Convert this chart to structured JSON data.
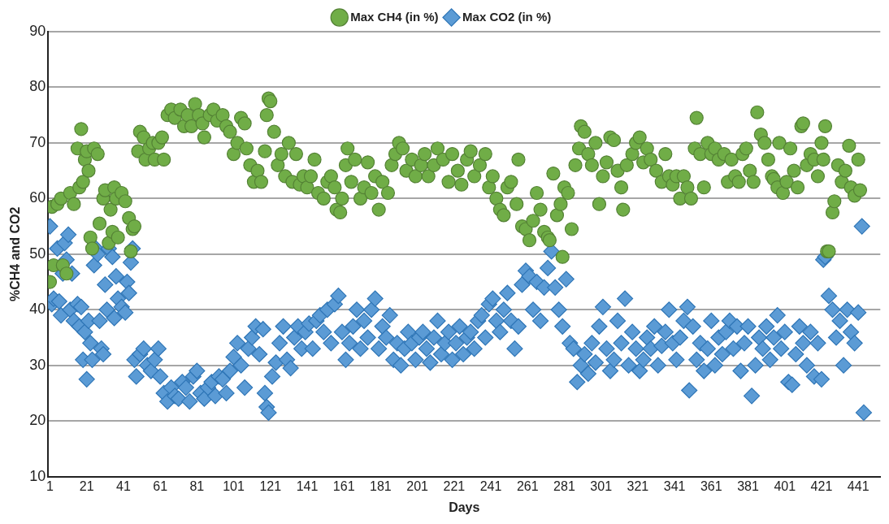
{
  "chart_data": {
    "type": "scatter",
    "xlabel": "Days",
    "ylabel": "%CH4 and CO2",
    "xlim": [
      0,
      453
    ],
    "xticks": [
      1,
      21,
      41,
      61,
      81,
      101,
      121,
      141,
      161,
      181,
      201,
      221,
      241,
      261,
      281,
      301,
      321,
      341,
      361,
      381,
      401,
      421,
      441
    ],
    "ylim": [
      10,
      90
    ],
    "yticks": [
      10,
      20,
      30,
      40,
      50,
      60,
      70,
      80,
      90
    ],
    "grid": "y",
    "legend": "top",
    "series": [
      {
        "name": "Max CH4 (in %)",
        "color": "#70ad47",
        "marker": "circle",
        "x": [
          1,
          2,
          3,
          5,
          7,
          8,
          10,
          12,
          14,
          16,
          17,
          18,
          19,
          20,
          21,
          22,
          23,
          24,
          25,
          27,
          28,
          30,
          31,
          33,
          34,
          35,
          36,
          37,
          38,
          40,
          42,
          44,
          45,
          46,
          47,
          49,
          50,
          52,
          53,
          55,
          57,
          58,
          60,
          62,
          63,
          65,
          67,
          69,
          72,
          74,
          76,
          78,
          80,
          82,
          84,
          85,
          88,
          90,
          92,
          95,
          97,
          99,
          101,
          103,
          105,
          107,
          108,
          110,
          112,
          114,
          116,
          118,
          119,
          120,
          121,
          123,
          125,
          127,
          129,
          131,
          133,
          135,
          137,
          139,
          141,
          143,
          145,
          147,
          150,
          152,
          154,
          156,
          157,
          159,
          160,
          162,
          163,
          165,
          167,
          170,
          172,
          174,
          176,
          178,
          180,
          182,
          185,
          187,
          189,
          191,
          193,
          195,
          198,
          200,
          203,
          205,
          207,
          210,
          212,
          215,
          218,
          220,
          223,
          225,
          228,
          230,
          232,
          235,
          238,
          240,
          242,
          244,
          246,
          248,
          250,
          252,
          255,
          256,
          258,
          260,
          262,
          264,
          266,
          268,
          270,
          272,
          273,
          275,
          277,
          279,
          280,
          281,
          283,
          285,
          287,
          289,
          290,
          292,
          294,
          296,
          298,
          300,
          302,
          304,
          306,
          308,
          310,
          312,
          313,
          315,
          318,
          320,
          322,
          324,
          326,
          328,
          331,
          334,
          336,
          338,
          340,
          342,
          344,
          346,
          348,
          350,
          352,
          353,
          355,
          357,
          359,
          361,
          363,
          365,
          368,
          370,
          372,
          374,
          376,
          378,
          380,
          382,
          384,
          386,
          388,
          390,
          392,
          394,
          395,
          397,
          398,
          400,
          402,
          404,
          406,
          408,
          410,
          411,
          413,
          415,
          417,
          419,
          421,
          422,
          423,
          424,
          425,
          427,
          428,
          430,
          432,
          434,
          436,
          437,
          439,
          441,
          442
        ],
        "values": [
          45,
          58.5,
          48,
          59,
          60,
          48,
          46.5,
          61,
          59,
          69,
          62,
          72.5,
          63,
          67,
          68.5,
          65,
          53,
          51,
          69,
          68,
          55.5,
          60,
          61.5,
          52,
          58,
          54,
          62,
          60,
          53,
          61,
          59.5,
          56.5,
          50.5,
          54.5,
          55,
          68.5,
          72,
          71,
          67,
          69,
          70,
          67,
          70,
          71,
          67,
          75,
          76,
          74.5,
          76,
          73,
          75,
          73,
          77,
          75,
          73.5,
          71,
          75,
          76,
          74,
          75,
          73,
          72,
          68,
          70,
          74.5,
          73.5,
          69,
          66,
          63,
          65,
          63,
          68.5,
          75,
          78,
          77.5,
          72,
          66,
          68,
          64,
          70,
          63,
          68,
          62.5,
          64,
          62,
          64,
          67,
          61,
          60,
          63,
          64,
          62,
          58,
          57.5,
          60,
          66,
          69,
          63,
          67,
          60,
          62,
          66.5,
          61,
          64,
          58,
          63,
          61,
          66,
          68,
          70,
          69,
          65,
          67,
          64,
          66,
          68,
          64,
          66,
          69,
          67,
          63,
          68,
          65,
          62.5,
          67,
          68.5,
          64,
          66,
          68,
          62,
          64,
          60,
          58,
          57,
          62,
          63,
          59,
          67,
          55,
          54.5,
          52.5,
          56,
          61,
          58,
          54,
          53,
          52.5,
          64.5,
          57,
          59,
          49.5,
          62,
          61,
          54.5,
          66,
          69,
          73,
          72,
          68,
          66,
          70,
          59,
          64,
          66.5,
          71,
          70.5,
          65,
          62,
          58,
          66,
          68,
          70,
          71,
          66.5,
          69,
          67,
          65,
          63,
          68,
          64,
          62.5,
          64,
          60,
          64,
          62,
          60,
          69,
          74.5,
          68,
          62,
          70,
          68,
          69,
          67,
          68,
          63,
          67,
          64,
          63,
          68,
          69,
          65,
          63,
          75.5,
          71.5,
          70,
          67,
          64,
          63.5,
          62,
          70,
          61,
          63,
          69,
          65,
          62,
          73,
          73.5,
          66,
          68,
          67,
          64,
          70,
          67,
          73,
          50.5,
          50.5,
          57.5,
          59.5,
          66,
          63,
          65,
          69.5,
          62,
          60.5,
          67,
          61.5
        ]
      },
      {
        "name": "Max CO2 (in %)",
        "color": "#5b9bd5",
        "marker": "diamond",
        "x": [
          1,
          2,
          3,
          5,
          6,
          7,
          8,
          9,
          10,
          11,
          12,
          13,
          14,
          16,
          17,
          18,
          19,
          20,
          21,
          22,
          23,
          24,
          25,
          26,
          27,
          28,
          29,
          30,
          31,
          32,
          33,
          35,
          36,
          37,
          38,
          40,
          42,
          43,
          44,
          45,
          46,
          47,
          48,
          50,
          52,
          54,
          56,
          58,
          60,
          61,
          63,
          65,
          67,
          69,
          71,
          73,
          75,
          77,
          79,
          81,
          83,
          85,
          87,
          89,
          91,
          93,
          95,
          97,
          99,
          101,
          103,
          105,
          107,
          109,
          111,
          113,
          115,
          117,
          118,
          119,
          120,
          122,
          124,
          126,
          128,
          130,
          132,
          134,
          136,
          138,
          140,
          142,
          144,
          146,
          148,
          150,
          152,
          154,
          156,
          158,
          160,
          162,
          164,
          166,
          168,
          170,
          172,
          174,
          176,
          178,
          180,
          182,
          184,
          186,
          188,
          190,
          192,
          194,
          196,
          198,
          200,
          202,
          204,
          206,
          208,
          210,
          212,
          214,
          216,
          218,
          220,
          222,
          224,
          226,
          228,
          230,
          232,
          234,
          236,
          238,
          240,
          242,
          244,
          246,
          248,
          250,
          252,
          254,
          256,
          258,
          260,
          262,
          264,
          266,
          268,
          270,
          272,
          274,
          276,
          278,
          280,
          282,
          284,
          286,
          288,
          290,
          292,
          294,
          296,
          298,
          300,
          302,
          304,
          306,
          308,
          310,
          312,
          314,
          316,
          318,
          320,
          322,
          324,
          326,
          328,
          330,
          332,
          334,
          336,
          338,
          340,
          342,
          344,
          346,
          348,
          349,
          351,
          353,
          355,
          357,
          359,
          361,
          363,
          365,
          367,
          369,
          371,
          373,
          375,
          377,
          379,
          381,
          383,
          385,
          387,
          389,
          391,
          393,
          395,
          397,
          399,
          401,
          403,
          405,
          407,
          409,
          411,
          413,
          415,
          417,
          419,
          421,
          422,
          423,
          425,
          427,
          429,
          431,
          433,
          435,
          437,
          439,
          441,
          443,
          444
        ],
        "values": [
          55,
          41,
          42,
          51,
          41.5,
          39,
          46.5,
          52,
          49,
          53.5,
          40,
          46.5,
          38,
          41,
          37,
          40.5,
          31,
          36,
          27.5,
          38,
          34,
          31,
          48,
          51,
          50,
          38,
          33,
          32,
          44.5,
          40,
          51,
          49.5,
          38.5,
          46,
          42,
          40.5,
          39.5,
          45,
          43,
          48.5,
          51,
          31,
          28,
          32,
          33,
          30,
          29,
          31,
          33,
          28,
          25,
          23.5,
          26,
          24.5,
          24,
          27,
          26,
          23.5,
          28,
          29,
          25,
          24,
          26,
          27,
          24.5,
          28,
          27.5,
          25,
          29,
          31.5,
          34,
          30,
          26,
          33,
          35,
          37,
          32,
          36.5,
          25,
          22.5,
          21.5,
          28,
          30.5,
          34,
          37,
          31,
          29.5,
          35,
          37,
          33,
          36,
          37.5,
          33,
          38,
          39,
          36,
          40,
          34,
          41,
          42.5,
          36,
          31,
          34,
          37,
          40,
          33,
          38,
          35,
          40,
          42,
          33,
          37,
          35,
          39,
          31,
          34,
          30,
          33,
          36,
          34,
          31,
          35,
          36,
          33,
          30.5,
          35,
          38,
          32,
          34,
          36,
          31,
          34,
          37,
          32,
          35,
          36,
          33,
          38,
          39,
          35,
          41,
          42,
          38,
          36,
          40,
          43,
          38,
          33,
          37,
          44.5,
          47,
          46,
          40,
          45,
          38,
          44,
          47.5,
          50.5,
          44,
          40,
          37,
          45.5,
          34,
          33,
          27,
          30,
          32,
          28.5,
          34,
          30.5,
          37,
          40.5,
          33,
          29,
          31,
          38,
          34,
          42,
          30,
          36,
          33,
          29,
          31,
          35,
          33,
          37,
          30,
          33.5,
          36,
          40,
          34,
          31,
          35,
          38,
          40.5,
          25.5,
          37,
          31,
          34,
          29,
          33,
          38,
          30,
          35,
          32,
          36,
          38,
          33,
          37,
          29,
          34,
          37,
          24.5,
          30,
          35,
          33,
          37,
          31,
          35,
          39,
          33,
          36,
          27,
          26.5,
          32,
          37,
          34,
          30,
          36,
          28,
          34,
          27.5,
          49,
          49.5,
          42.5,
          40,
          35,
          38,
          30,
          40,
          36,
          34,
          39.5,
          55,
          21.5
        ]
      }
    ]
  }
}
